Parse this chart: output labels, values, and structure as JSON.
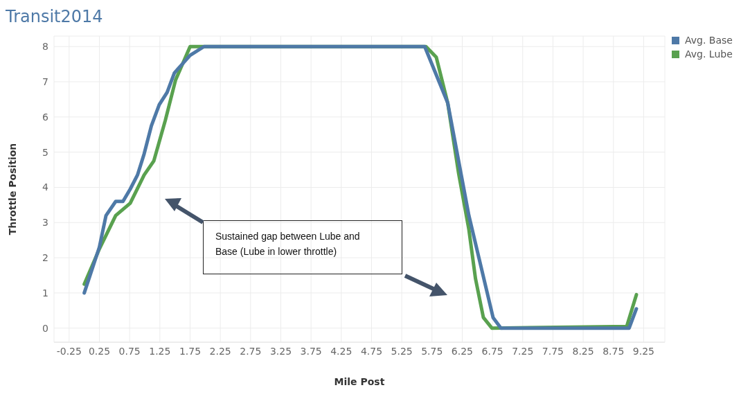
{
  "chart_data": {
    "type": "line",
    "title": "Transit2014",
    "xlabel": "Mile Post",
    "ylabel": "Throttle Position",
    "xlim": [
      -0.5,
      9.6
    ],
    "xticks": [
      -0.25,
      0.25,
      0.75,
      1.25,
      1.75,
      2.25,
      2.75,
      3.25,
      3.75,
      4.25,
      4.75,
      5.25,
      5.75,
      6.25,
      6.75,
      7.25,
      7.75,
      8.25,
      8.75,
      9.25
    ],
    "ylim": [
      -0.4,
      8.3
    ],
    "yticks": [
      0,
      1,
      2,
      3,
      4,
      5,
      6,
      7,
      8
    ],
    "grid": true,
    "legend": "top right",
    "line_style": "solid",
    "series": [
      {
        "name": "Avg. Base",
        "color": "#4e79a7",
        "x": [
          0,
          0.25,
          0.36,
          0.52,
          0.64,
          0.76,
          0.88,
          0.99,
          1.11,
          1.24,
          1.37,
          1.49,
          1.62,
          1.75,
          1.98,
          5.63,
          6.01,
          6.36,
          6.76,
          6.89,
          9.01,
          9.13
        ],
        "values": [
          1.0,
          2.3,
          3.2,
          3.6,
          3.6,
          3.95,
          4.35,
          4.95,
          5.75,
          6.35,
          6.7,
          7.25,
          7.5,
          7.75,
          8,
          8,
          6.4,
          3.2,
          0.3,
          0,
          0,
          0.55
        ]
      },
      {
        "name": "Avg. Lube",
        "color": "#59a14f",
        "x": [
          0,
          0.25,
          0.52,
          0.76,
          0.99,
          1.15,
          1.34,
          1.51,
          1.75,
          1.98,
          5.65,
          5.82,
          6.01,
          6.19,
          6.36,
          6.47,
          6.6,
          6.74,
          8.97,
          9.13
        ],
        "values": [
          1.25,
          2.25,
          3.2,
          3.55,
          4.35,
          4.75,
          5.9,
          7.05,
          8,
          8,
          8,
          7.7,
          6.4,
          4.4,
          2.8,
          1.4,
          0.3,
          0,
          0.05,
          0.95
        ]
      }
    ],
    "annotations": [
      "Sustained gap between Lube and Base (Lube in lower throttle)"
    ]
  }
}
